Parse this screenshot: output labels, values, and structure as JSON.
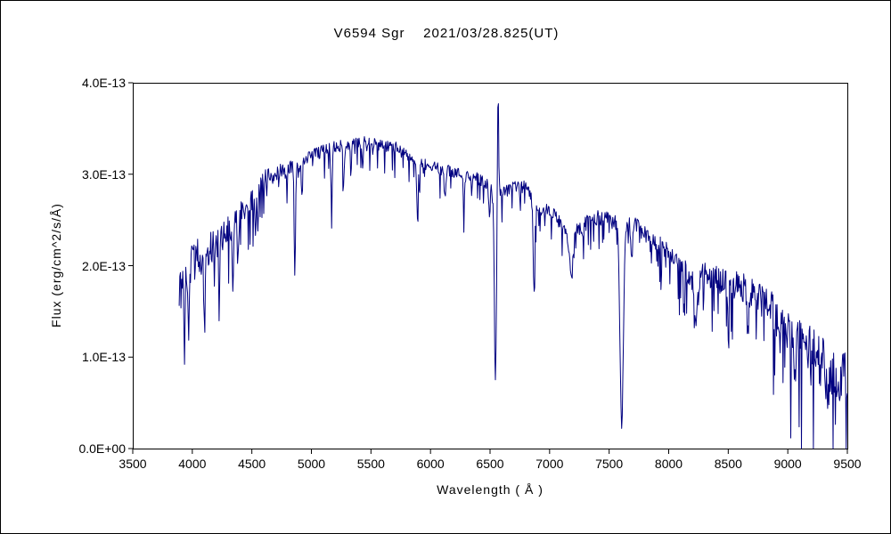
{
  "page": {
    "background": "#ffffff",
    "border_color": "#000000"
  },
  "chart_data": {
    "type": "line",
    "title": "V6594 Sgr    2021/03/28.825(UT)",
    "xlabel": "Wavelength ( Å )",
    "ylabel": "Flux (erg/cm^2/s/Å)",
    "xlim": [
      3500,
      9500
    ],
    "ylim": [
      0,
      4e-13
    ],
    "ymax_units": 4.0,
    "value_unit": "1e-13 erg/cm^2/s/Å",
    "grid": false,
    "legend": "none",
    "line_color": "#000080",
    "x_ticks": [
      3500,
      4000,
      4500,
      5000,
      5500,
      6000,
      6500,
      7000,
      7500,
      8000,
      8500,
      9000,
      9500
    ],
    "y_ticks": [
      {
        "value": 0,
        "label": "0.0E+00"
      },
      {
        "value": 1,
        "label": "1.0E-13"
      },
      {
        "value": 2,
        "label": "2.0E-13"
      },
      {
        "value": 3,
        "label": "3.0E-13"
      },
      {
        "value": 4,
        "label": "4.0E-13"
      }
    ],
    "sample": {
      "start": 3890,
      "end": 9500,
      "step": 5,
      "seed": 987654321
    },
    "continuum_points": [
      [
        3890,
        1.8
      ],
      [
        3950,
        2.0
      ],
      [
        4000,
        2.05
      ],
      [
        4100,
        2.1
      ],
      [
        4200,
        2.25
      ],
      [
        4300,
        2.4
      ],
      [
        4400,
        2.55
      ],
      [
        4500,
        2.7
      ],
      [
        4600,
        2.95
      ],
      [
        4700,
        3.0
      ],
      [
        4800,
        3.05
      ],
      [
        4900,
        3.1
      ],
      [
        5000,
        3.2
      ],
      [
        5100,
        3.25
      ],
      [
        5200,
        3.3
      ],
      [
        5350,
        3.32
      ],
      [
        5450,
        3.36
      ],
      [
        5550,
        3.32
      ],
      [
        5700,
        3.3
      ],
      [
        5800,
        3.2
      ],
      [
        5900,
        3.12
      ],
      [
        6000,
        3.1
      ],
      [
        6100,
        3.05
      ],
      [
        6250,
        3.0
      ],
      [
        6400,
        2.95
      ],
      [
        6500,
        2.88
      ],
      [
        6600,
        2.78
      ],
      [
        6700,
        2.88
      ],
      [
        6800,
        2.86
      ],
      [
        6900,
        2.58
      ],
      [
        7000,
        2.62
      ],
      [
        7100,
        2.45
      ],
      [
        7200,
        2.36
      ],
      [
        7300,
        2.46
      ],
      [
        7400,
        2.52
      ],
      [
        7500,
        2.5
      ],
      [
        7600,
        2.46
      ],
      [
        7700,
        2.46
      ],
      [
        7800,
        2.36
      ],
      [
        7900,
        2.26
      ],
      [
        8000,
        2.16
      ],
      [
        8100,
        2.02
      ],
      [
        8200,
        1.82
      ],
      [
        8300,
        1.92
      ],
      [
        8400,
        1.86
      ],
      [
        8500,
        1.8
      ],
      [
        8600,
        1.76
      ],
      [
        8700,
        1.7
      ],
      [
        8800,
        1.6
      ],
      [
        8900,
        1.46
      ],
      [
        9000,
        1.32
      ],
      [
        9100,
        1.16
      ],
      [
        9200,
        1.05
      ],
      [
        9300,
        0.95
      ],
      [
        9400,
        0.85
      ],
      [
        9500,
        0.75
      ]
    ],
    "noise_amplitude": [
      [
        3890,
        0.5
      ],
      [
        4100,
        0.38
      ],
      [
        4300,
        0.28
      ],
      [
        4600,
        0.18
      ],
      [
        5000,
        0.13
      ],
      [
        5600,
        0.12
      ],
      [
        6300,
        0.12
      ],
      [
        6800,
        0.13
      ],
      [
        7300,
        0.15
      ],
      [
        7900,
        0.18
      ],
      [
        8300,
        0.25
      ],
      [
        8700,
        0.33
      ],
      [
        9000,
        0.45
      ],
      [
        9300,
        0.55
      ],
      [
        9500,
        0.6
      ]
    ],
    "absorption_lines": [
      {
        "center": 3934,
        "depth": 0.95,
        "sigma": 6
      },
      {
        "center": 3968,
        "depth": 0.9,
        "sigma": 6
      },
      {
        "center": 4101,
        "depth": 0.8,
        "sigma": 6
      },
      {
        "center": 4226,
        "depth": 0.45,
        "sigma": 5
      },
      {
        "center": 4340,
        "depth": 0.75,
        "sigma": 6
      },
      {
        "center": 4383,
        "depth": 0.45,
        "sigma": 5
      },
      {
        "center": 4530,
        "depth": 0.35,
        "sigma": 6
      },
      {
        "center": 4861,
        "depth": 1.15,
        "sigma": 6
      },
      {
        "center": 4920,
        "depth": 0.4,
        "sigma": 5
      },
      {
        "center": 5169,
        "depth": 0.6,
        "sigma": 6
      },
      {
        "center": 5270,
        "depth": 0.45,
        "sigma": 6
      },
      {
        "center": 5430,
        "depth": 0.3,
        "sigma": 5
      },
      {
        "center": 5890,
        "depth": 0.6,
        "sigma": 6
      },
      {
        "center": 6122,
        "depth": 0.3,
        "sigma": 5
      },
      {
        "center": 6280,
        "depth": 0.35,
        "sigma": 5
      },
      {
        "center": 6495,
        "depth": 0.4,
        "sigma": 6
      },
      {
        "center": 6545,
        "depth": 2.05,
        "sigma": 9
      },
      {
        "center": 6869,
        "depth": 0.95,
        "sigma": 7
      },
      {
        "center": 7180,
        "depth": 0.45,
        "sigma": 16
      },
      {
        "center": 7605,
        "depth": 2.15,
        "sigma": 14
      },
      {
        "center": 7690,
        "depth": 0.4,
        "sigma": 8
      },
      {
        "center": 8230,
        "depth": 0.55,
        "sigma": 10
      },
      {
        "center": 8500,
        "depth": 0.25,
        "sigma": 7
      },
      {
        "center": 8670,
        "depth": 0.3,
        "sigma": 7
      },
      {
        "center": 8930,
        "depth": 0.3,
        "sigma": 8
      },
      {
        "center": 9060,
        "depth": 0.35,
        "sigma": 8
      },
      {
        "center": 9340,
        "depth": 0.4,
        "sigma": 10
      }
    ],
    "emission_lines": [
      {
        "center": 6567,
        "height": 1.25,
        "sigma": 5
      }
    ]
  }
}
